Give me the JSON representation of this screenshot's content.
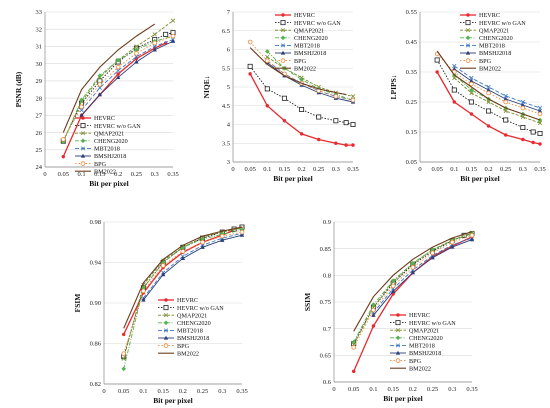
{
  "styles": {
    "HEVRC": {
      "color": "#e8292e",
      "dash": "",
      "marker": "circle-filled",
      "width": 1.3
    },
    "HEVRC w/o GAN": {
      "color": "#222222",
      "dash": "1.5,1.5",
      "marker": "square-open",
      "width": 0.9
    },
    "QMAP2021": {
      "color": "#7a8a2a",
      "dash": "3,1.5",
      "marker": "x",
      "width": 0.9
    },
    "CHENG2020": {
      "color": "#55b24e",
      "dash": "4,1.5,1,1.5",
      "marker": "diamond-filled",
      "width": 0.9
    },
    "MBT2018": {
      "color": "#3a78c2",
      "dash": "4,2",
      "marker": "x",
      "width": 0.9
    },
    "BMSHJ2018": {
      "color": "#2a3e78",
      "dash": "",
      "marker": "triangle-filled",
      "width": 0.9
    },
    "BPG": {
      "color": "#f08a3c",
      "dash": "1.5,2",
      "marker": "circle-open",
      "width": 0.9
    },
    "BM2022": {
      "color": "#6b3b1c",
      "dash": "",
      "marker": "none",
      "width": 1.1
    }
  },
  "chart_data": [
    {
      "type": "line",
      "ylabel": "PSNR (dB)",
      "xlabel": "Bit per pixel",
      "xlim": [
        0,
        0.35
      ],
      "ylim": [
        24,
        33
      ],
      "xticks": [
        0,
        0.05,
        0.1,
        0.15,
        0.2,
        0.25,
        0.3,
        0.35
      ],
      "xtick_labels": [
        "0",
        "0.05",
        "0.1",
        "0.15",
        "0.2",
        "0.25",
        "0.3",
        "0.35"
      ],
      "yticks": [
        24,
        25,
        26,
        27,
        28,
        29,
        30,
        31,
        32,
        33
      ],
      "ytick_labels": [
        "24",
        "25",
        "26",
        "27",
        "28",
        "29",
        "30",
        "31",
        "32",
        "33"
      ],
      "grid": true,
      "legend": "bottom-right",
      "series": [
        {
          "name": "HEVRC",
          "x": [
            0.05,
            0.1,
            0.15,
            0.2,
            0.25,
            0.3,
            0.33
          ],
          "y": [
            24.6,
            27.0,
            28.2,
            29.4,
            30.3,
            30.9,
            31.2
          ]
        },
        {
          "name": "HEVRC w/o GAN",
          "x": [
            0.05,
            0.1,
            0.15,
            0.2,
            0.25,
            0.3,
            0.33,
            0.35
          ],
          "y": [
            25.5,
            27.7,
            29.0,
            30.1,
            30.9,
            31.4,
            31.7,
            31.8
          ]
        },
        {
          "name": "QMAP2021",
          "x": [
            0.05,
            0.1,
            0.15,
            0.2,
            0.25,
            0.3,
            0.35
          ],
          "y": [
            25.5,
            27.8,
            29.2,
            30.2,
            31.0,
            31.7,
            32.5
          ]
        },
        {
          "name": "CHENG2020",
          "x": [
            0.05,
            0.1,
            0.15,
            0.2,
            0.25,
            0.3,
            0.35
          ],
          "y": [
            25.5,
            27.9,
            29.3,
            30.2,
            30.8,
            31.3,
            31.6
          ]
        },
        {
          "name": "MBT2018",
          "x": [
            0.1,
            0.15,
            0.2,
            0.25,
            0.3,
            0.35
          ],
          "y": [
            27.3,
            28.6,
            29.6,
            30.4,
            31.0,
            31.4
          ]
        },
        {
          "name": "BMSHJ2018",
          "x": [
            0.1,
            0.15,
            0.2,
            0.25,
            0.3,
            0.35
          ],
          "y": [
            27.0,
            28.2,
            29.2,
            30.1,
            30.8,
            31.3
          ]
        },
        {
          "name": "BPG",
          "x": [
            0.05,
            0.1,
            0.15,
            0.2,
            0.25,
            0.3,
            0.35
          ],
          "y": [
            25.6,
            27.5,
            28.8,
            29.8,
            30.6,
            31.2,
            31.6
          ]
        },
        {
          "name": "BM2022",
          "x": [
            0.05,
            0.1,
            0.15,
            0.2,
            0.25,
            0.3
          ],
          "y": [
            26.0,
            28.5,
            29.8,
            30.8,
            31.6,
            32.3
          ]
        }
      ]
    },
    {
      "type": "line",
      "ylabel": "NIQE↓",
      "xlabel": "Bit per pixel",
      "xlim": [
        0,
        0.35
      ],
      "ylim": [
        3,
        7
      ],
      "xticks": [
        0,
        0.05,
        0.1,
        0.15,
        0.2,
        0.25,
        0.3,
        0.35
      ],
      "xtick_labels": [
        "0",
        "0.05",
        "0.1",
        "0.15",
        "0.2",
        "0.25",
        "0.3",
        "0.35"
      ],
      "yticks": [
        3,
        3.5,
        4,
        4.5,
        5,
        5.5,
        6,
        6.5,
        7
      ],
      "ytick_labels": [
        "3",
        "3.5",
        "4",
        "4.5",
        "5",
        "5.5",
        "6",
        "6.5",
        "7"
      ],
      "grid": true,
      "legend": "top-right",
      "series": [
        {
          "name": "HEVRC",
          "x": [
            0.05,
            0.1,
            0.15,
            0.2,
            0.25,
            0.3,
            0.33,
            0.35
          ],
          "y": [
            5.35,
            4.5,
            4.1,
            3.75,
            3.6,
            3.5,
            3.45,
            3.45
          ]
        },
        {
          "name": "HEVRC w/o GAN",
          "x": [
            0.05,
            0.1,
            0.15,
            0.2,
            0.25,
            0.3,
            0.33,
            0.35
          ],
          "y": [
            5.55,
            4.95,
            4.7,
            4.4,
            4.2,
            4.1,
            4.05,
            4.0
          ]
        },
        {
          "name": "QMAP2021",
          "x": [
            0.1,
            0.15,
            0.2,
            0.25,
            0.3,
            0.35
          ],
          "y": [
            5.8,
            5.5,
            5.25,
            5.0,
            4.85,
            4.75
          ]
        },
        {
          "name": "CHENG2020",
          "x": [
            0.1,
            0.15,
            0.2,
            0.25,
            0.3,
            0.35
          ],
          "y": [
            5.95,
            5.5,
            5.2,
            4.95,
            4.8,
            4.65
          ]
        },
        {
          "name": "MBT2018",
          "x": [
            0.1,
            0.15,
            0.2,
            0.25,
            0.3,
            0.35
          ],
          "y": [
            5.7,
            5.35,
            5.1,
            4.9,
            4.75,
            4.65
          ]
        },
        {
          "name": "BMSHJ2018",
          "x": [
            0.1,
            0.15,
            0.2,
            0.25,
            0.3,
            0.35
          ],
          "y": [
            5.65,
            5.3,
            5.05,
            4.85,
            4.7,
            4.6
          ]
        },
        {
          "name": "BPG",
          "x": [
            0.05,
            0.1,
            0.15,
            0.2,
            0.25,
            0.3,
            0.35
          ],
          "y": [
            6.2,
            5.7,
            5.35,
            5.1,
            4.9,
            4.75,
            4.65
          ]
        },
        {
          "name": "BM2022",
          "x": [
            0.05,
            0.1,
            0.15,
            0.2,
            0.25,
            0.3,
            0.33
          ],
          "y": [
            6.05,
            5.6,
            5.3,
            5.1,
            4.95,
            4.85,
            4.8
          ]
        }
      ]
    },
    {
      "type": "line",
      "ylabel": "LPIPS↓",
      "xlabel": "Bit per pixel",
      "xlim": [
        0,
        0.35
      ],
      "ylim": [
        0.05,
        0.55
      ],
      "xticks": [
        0,
        0.05,
        0.1,
        0.15,
        0.2,
        0.25,
        0.3,
        0.35
      ],
      "xtick_labels": [
        "0",
        "0.05",
        "0.1",
        "0.15",
        "0.2",
        "0.25",
        "0.3",
        "0.35"
      ],
      "yticks": [
        0.05,
        0.15,
        0.25,
        0.35,
        0.45,
        0.55
      ],
      "ytick_labels": [
        "0.05",
        "0.15",
        "0.25",
        "0.35",
        "0.45",
        "0.55"
      ],
      "grid": true,
      "legend": "top-right",
      "series": [
        {
          "name": "HEVRC",
          "x": [
            0.05,
            0.1,
            0.15,
            0.2,
            0.25,
            0.3,
            0.33,
            0.35
          ],
          "y": [
            0.35,
            0.25,
            0.21,
            0.17,
            0.14,
            0.125,
            0.115,
            0.11
          ]
        },
        {
          "name": "HEVRC w/o GAN",
          "x": [
            0.05,
            0.1,
            0.15,
            0.2,
            0.25,
            0.3,
            0.33,
            0.35
          ],
          "y": [
            0.39,
            0.29,
            0.25,
            0.22,
            0.19,
            0.165,
            0.15,
            0.145
          ]
        },
        {
          "name": "QMAP2021",
          "x": [
            0.1,
            0.15,
            0.2,
            0.25,
            0.3,
            0.35
          ],
          "y": [
            0.33,
            0.28,
            0.25,
            0.22,
            0.2,
            0.18
          ]
        },
        {
          "name": "CHENG2020",
          "x": [
            0.1,
            0.15,
            0.2,
            0.25,
            0.3,
            0.35
          ],
          "y": [
            0.34,
            0.29,
            0.26,
            0.23,
            0.21,
            0.19
          ]
        },
        {
          "name": "MBT2018",
          "x": [
            0.1,
            0.15,
            0.2,
            0.25,
            0.3,
            0.35
          ],
          "y": [
            0.37,
            0.33,
            0.3,
            0.27,
            0.25,
            0.23
          ]
        },
        {
          "name": "BMSHJ2018",
          "x": [
            0.1,
            0.15,
            0.2,
            0.25,
            0.3,
            0.35
          ],
          "y": [
            0.36,
            0.32,
            0.29,
            0.26,
            0.24,
            0.22
          ]
        },
        {
          "name": "BPG",
          "x": [
            0.05,
            0.1,
            0.15,
            0.2,
            0.25,
            0.3,
            0.35
          ],
          "y": [
            0.41,
            0.35,
            0.31,
            0.28,
            0.25,
            0.23,
            0.21
          ]
        },
        {
          "name": "BM2022",
          "x": [
            0.05,
            0.1,
            0.15,
            0.2,
            0.25,
            0.3,
            0.35
          ],
          "y": [
            0.42,
            0.34,
            0.3,
            0.26,
            0.23,
            0.21,
            0.19
          ]
        }
      ]
    },
    {
      "type": "line",
      "ylabel": "FSIM",
      "xlabel": "Bit per pixel",
      "xlim": [
        0,
        0.35
      ],
      "ylim": [
        0.82,
        0.98
      ],
      "xticks": [
        0,
        0.05,
        0.1,
        0.15,
        0.2,
        0.25,
        0.3,
        0.35
      ],
      "xtick_labels": [
        "0",
        "0.05",
        "0.1",
        "0.15",
        "0.2",
        "0.25",
        "0.3",
        "0.35"
      ],
      "yticks": [
        0.82,
        0.86,
        0.9,
        0.94,
        0.98
      ],
      "ytick_labels": [
        "0.82",
        "0.86",
        "0.90",
        "0.94",
        "0.98"
      ],
      "grid": true,
      "legend": "bottom-right",
      "series": [
        {
          "name": "HEVRC",
          "x": [
            0.05,
            0.1,
            0.15,
            0.2,
            0.25,
            0.3,
            0.33
          ],
          "y": [
            0.869,
            0.91,
            0.935,
            0.95,
            0.96,
            0.967,
            0.972
          ]
        },
        {
          "name": "HEVRC w/o GAN",
          "x": [
            0.05,
            0.1,
            0.15,
            0.2,
            0.25,
            0.3,
            0.33,
            0.35
          ],
          "y": [
            0.847,
            0.915,
            0.94,
            0.955,
            0.964,
            0.97,
            0.973,
            0.975
          ]
        },
        {
          "name": "QMAP2021",
          "x": [
            0.05,
            0.1,
            0.15,
            0.2,
            0.25,
            0.3,
            0.35
          ],
          "y": [
            0.845,
            0.918,
            0.942,
            0.955,
            0.965,
            0.97,
            0.974
          ]
        },
        {
          "name": "CHENG2020",
          "x": [
            0.05,
            0.1,
            0.15,
            0.2,
            0.25,
            0.3,
            0.35
          ],
          "y": [
            0.835,
            0.915,
            0.94,
            0.955,
            0.963,
            0.968,
            0.972
          ]
        },
        {
          "name": "MBT2018",
          "x": [
            0.1,
            0.15,
            0.2,
            0.25,
            0.3,
            0.35
          ],
          "y": [
            0.905,
            0.93,
            0.946,
            0.957,
            0.964,
            0.969
          ]
        },
        {
          "name": "BMSHJ2018",
          "x": [
            0.1,
            0.15,
            0.2,
            0.25,
            0.3,
            0.35
          ],
          "y": [
            0.903,
            0.928,
            0.944,
            0.955,
            0.962,
            0.967
          ]
        },
        {
          "name": "BPG",
          "x": [
            0.05,
            0.1,
            0.15,
            0.2,
            0.25,
            0.3,
            0.35
          ],
          "y": [
            0.85,
            0.912,
            0.937,
            0.951,
            0.96,
            0.966,
            0.97
          ]
        },
        {
          "name": "BM2022",
          "x": [
            0.05,
            0.1,
            0.15,
            0.2,
            0.25,
            0.3,
            0.35
          ],
          "y": [
            0.875,
            0.92,
            0.943,
            0.957,
            0.966,
            0.971,
            0.975
          ]
        }
      ]
    },
    {
      "type": "line",
      "ylabel": "SSIM",
      "xlabel": "Bit per pixel",
      "xlim": [
        0,
        0.35
      ],
      "ylim": [
        0.6,
        0.9
      ],
      "xticks": [
        0,
        0.05,
        0.1,
        0.15,
        0.2,
        0.25,
        0.3,
        0.35
      ],
      "xtick_labels": [
        "0",
        "0.05",
        "0.1",
        "0.15",
        "0.2",
        "0.25",
        "0.3",
        "0.35"
      ],
      "yticks": [
        0.6,
        0.65,
        0.7,
        0.75,
        0.8,
        0.85,
        0.9
      ],
      "ytick_labels": [
        "0.6",
        "0.65",
        "0.7",
        "0.75",
        "0.8",
        "0.85",
        "0.9"
      ],
      "grid": true,
      "legend": "bottom-right",
      "series": [
        {
          "name": "HEVRC",
          "x": [
            0.05,
            0.1,
            0.15,
            0.2,
            0.25,
            0.3,
            0.35
          ],
          "y": [
            0.62,
            0.705,
            0.765,
            0.805,
            0.835,
            0.855,
            0.872
          ]
        },
        {
          "name": "HEVRC w/o GAN",
          "x": [
            0.05,
            0.1,
            0.15,
            0.2,
            0.25,
            0.3,
            0.33,
            0.35
          ],
          "y": [
            0.672,
            0.74,
            0.785,
            0.82,
            0.845,
            0.865,
            0.875,
            0.878
          ]
        },
        {
          "name": "QMAP2021",
          "x": [
            0.05,
            0.1,
            0.15,
            0.2,
            0.25,
            0.3,
            0.35
          ],
          "y": [
            0.67,
            0.74,
            0.788,
            0.822,
            0.848,
            0.866,
            0.88
          ]
        },
        {
          "name": "CHENG2020",
          "x": [
            0.05,
            0.1,
            0.15,
            0.2,
            0.25,
            0.3,
            0.35
          ],
          "y": [
            0.675,
            0.745,
            0.79,
            0.823,
            0.848,
            0.865,
            0.878
          ]
        },
        {
          "name": "MBT2018",
          "x": [
            0.1,
            0.15,
            0.2,
            0.25,
            0.3,
            0.35
          ],
          "y": [
            0.73,
            0.775,
            0.81,
            0.837,
            0.857,
            0.87
          ]
        },
        {
          "name": "BMSHJ2018",
          "x": [
            0.1,
            0.15,
            0.2,
            0.25,
            0.3,
            0.35
          ],
          "y": [
            0.725,
            0.77,
            0.805,
            0.833,
            0.853,
            0.867
          ]
        },
        {
          "name": "BPG",
          "x": [
            0.05,
            0.1,
            0.15,
            0.2,
            0.25,
            0.3,
            0.35
          ],
          "y": [
            0.665,
            0.735,
            0.78,
            0.815,
            0.842,
            0.862,
            0.875
          ]
        },
        {
          "name": "BM2022",
          "x": [
            0.05,
            0.1,
            0.15,
            0.2,
            0.25,
            0.3,
            0.35
          ],
          "y": [
            0.695,
            0.76,
            0.8,
            0.83,
            0.853,
            0.87,
            0.882
          ]
        }
      ]
    }
  ]
}
